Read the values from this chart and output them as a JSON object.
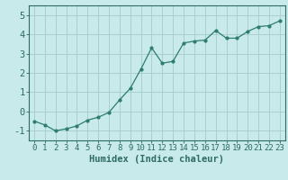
{
  "x": [
    0,
    1,
    2,
    3,
    4,
    5,
    6,
    7,
    8,
    9,
    10,
    11,
    12,
    13,
    14,
    15,
    16,
    17,
    18,
    19,
    20,
    21,
    22,
    23
  ],
  "y": [
    -0.5,
    -0.7,
    -1.0,
    -0.9,
    -0.75,
    -0.45,
    -0.3,
    -0.05,
    0.6,
    1.2,
    2.2,
    3.3,
    2.5,
    2.6,
    3.55,
    3.65,
    3.7,
    4.2,
    3.8,
    3.8,
    4.15,
    4.4,
    4.45,
    4.7
  ],
  "line_color": "#2e7d6e",
  "marker": "o",
  "marker_size": 2.0,
  "bg_color": "#c8eaea",
  "grid_color": "#aacfcf",
  "xlabel": "Humidex (Indice chaleur)",
  "ylim": [
    -1.5,
    5.5
  ],
  "xlim": [
    -0.5,
    23.5
  ],
  "yticks": [
    -1,
    0,
    1,
    2,
    3,
    4,
    5
  ],
  "xtick_labels": [
    "0",
    "1",
    "2",
    "3",
    "4",
    "5",
    "6",
    "7",
    "8",
    "9",
    "10",
    "11",
    "12",
    "13",
    "14",
    "15",
    "16",
    "17",
    "18",
    "19",
    "20",
    "21",
    "22",
    "23"
  ],
  "tick_color": "#2e6b65",
  "label_fontsize": 7.5,
  "tick_fontsize": 6.5,
  "ytick_fontsize": 7.5
}
